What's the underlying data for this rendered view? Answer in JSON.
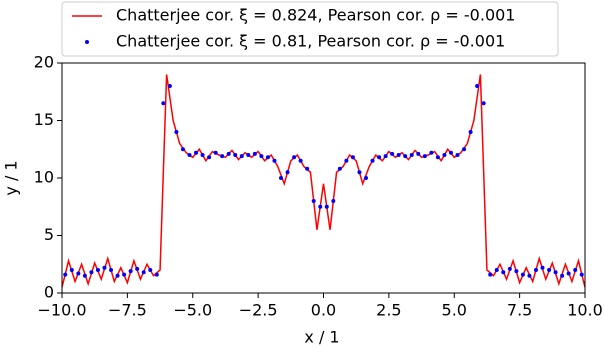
{
  "chart_data": {
    "type": "line-scatter",
    "xlabel": "x / 1",
    "ylabel": "y / 1",
    "legend": "top",
    "xlim": [
      -10,
      10
    ],
    "ylim": [
      0,
      20
    ],
    "xticks": [
      {
        "value": -10,
        "label": "−10.0"
      },
      {
        "value": -7.5,
        "label": "−7.5"
      },
      {
        "value": -5,
        "label": "−5.0"
      },
      {
        "value": -2.5,
        "label": "−2.5"
      },
      {
        "value": 0,
        "label": "0.0"
      },
      {
        "value": 2.5,
        "label": "2.5"
      },
      {
        "value": 5,
        "label": "5.0"
      },
      {
        "value": 7.5,
        "label": "7.5"
      },
      {
        "value": 10,
        "label": "10.0"
      }
    ],
    "yticks": [
      0,
      5,
      10,
      15,
      20
    ],
    "series": [
      {
        "name": "Chatterjee cor. ξ = 0.824, Pearson cor. ρ = -0.001",
        "color": "#ff0000",
        "kind": "line",
        "x": [
          -10,
          -9.75,
          -9.5,
          -9.25,
          -9,
          -8.75,
          -8.5,
          -8.25,
          -8,
          -7.75,
          -7.5,
          -7.25,
          -7,
          -6.75,
          -6.5,
          -6.25,
          -6,
          -5.75,
          -5.5,
          -5.25,
          -5,
          -4.75,
          -4.5,
          -4.25,
          -4,
          -3.75,
          -3.5,
          -3.25,
          -3,
          -2.75,
          -2.5,
          -2.25,
          -2,
          -1.75,
          -1.5,
          -1.25,
          -1,
          -0.75,
          -0.5,
          -0.25,
          0,
          0.25,
          0.5,
          0.75,
          1,
          1.25,
          1.5,
          1.75,
          2,
          2.25,
          2.5,
          2.75,
          3,
          3.25,
          3.5,
          3.75,
          4,
          4.25,
          4.5,
          4.75,
          5,
          5.25,
          5.5,
          5.75,
          6,
          6.25,
          6.5,
          6.75,
          7,
          7.25,
          7.5,
          7.75,
          8,
          8.25,
          8.5,
          8.75,
          9,
          9.25,
          9.5,
          9.75,
          10
        ],
        "values": [
          0.5,
          2.8,
          1.0,
          2.5,
          0.8,
          2.6,
          1.2,
          3.0,
          1.0,
          2.2,
          0.9,
          2.8,
          1.2,
          2.5,
          1.5,
          2.0,
          19.0,
          15.0,
          13.0,
          12.2,
          11.8,
          12.5,
          11.5,
          12.3,
          12.0,
          11.8,
          12.4,
          11.6,
          12.2,
          11.8,
          12.3,
          11.5,
          12.0,
          11.0,
          9.5,
          11.5,
          12.0,
          11.0,
          10.5,
          5.5,
          9.5,
          5.5,
          10.5,
          11.0,
          12.0,
          11.5,
          9.5,
          11.0,
          12.0,
          11.5,
          12.3,
          11.8,
          12.2,
          11.6,
          12.4,
          11.8,
          12.0,
          12.3,
          11.5,
          12.5,
          11.8,
          12.2,
          13.0,
          15.0,
          19.0,
          2.0,
          1.5,
          2.5,
          1.2,
          2.8,
          0.9,
          2.2,
          1.0,
          3.0,
          1.2,
          2.6,
          0.8,
          2.5,
          1.0,
          2.8,
          0.5
        ]
      },
      {
        "name": "Chatterjee cor. ξ = 0.81, Pearson cor. ρ = -0.001",
        "color": "#0000ff",
        "kind": "scatter",
        "x": [
          -9.875,
          -9.625,
          -9.375,
          -9.125,
          -8.875,
          -8.625,
          -8.375,
          -8.125,
          -7.875,
          -7.625,
          -7.375,
          -7.125,
          -6.875,
          -6.625,
          -6.375,
          -6.125,
          -5.875,
          -5.625,
          -5.375,
          -5.125,
          -4.875,
          -4.625,
          -4.375,
          -4.125,
          -3.875,
          -3.625,
          -3.375,
          -3.125,
          -2.875,
          -2.625,
          -2.375,
          -2.125,
          -1.875,
          -1.625,
          -1.375,
          -1.125,
          -0.875,
          -0.625,
          -0.375,
          -0.125,
          0.125,
          0.375,
          0.625,
          0.875,
          1.125,
          1.375,
          1.625,
          1.875,
          2.125,
          2.375,
          2.625,
          2.875,
          3.125,
          3.375,
          3.625,
          3.875,
          4.125,
          4.375,
          4.625,
          4.875,
          5.125,
          5.375,
          5.625,
          5.875,
          6.125,
          6.375,
          6.625,
          6.875,
          7.125,
          7.375,
          7.625,
          7.875,
          8.125,
          8.375,
          8.625,
          8.875,
          9.125,
          9.375,
          9.625,
          9.875
        ],
        "values": [
          1.6,
          2.0,
          1.7,
          1.5,
          1.8,
          2.0,
          2.2,
          2.0,
          1.5,
          1.6,
          1.9,
          2.1,
          1.8,
          2.0,
          1.6,
          16.5,
          18.0,
          14.0,
          12.5,
          12.0,
          12.2,
          12.0,
          11.8,
          12.2,
          11.9,
          12.1,
          12.0,
          11.9,
          12.0,
          12.1,
          11.9,
          11.8,
          11.5,
          10.0,
          10.5,
          11.8,
          11.5,
          10.8,
          8.0,
          7.5,
          7.5,
          8.0,
          10.8,
          11.5,
          11.8,
          10.5,
          10.0,
          11.5,
          11.8,
          11.9,
          12.1,
          12.0,
          11.9,
          12.0,
          12.1,
          11.9,
          12.2,
          11.8,
          12.0,
          12.2,
          12.0,
          12.5,
          14.0,
          18.0,
          16.5,
          1.6,
          2.0,
          1.8,
          2.1,
          1.9,
          1.6,
          1.5,
          2.0,
          2.2,
          2.0,
          1.8,
          1.5,
          1.7,
          2.0,
          1.6
        ]
      }
    ]
  }
}
